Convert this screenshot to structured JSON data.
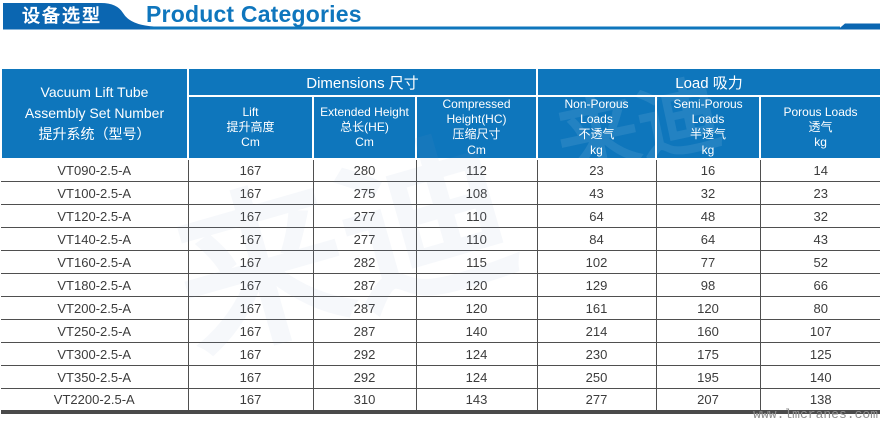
{
  "banner": {
    "tab_label": "设备选型",
    "title": "Product Categories"
  },
  "table": {
    "col1_header": "Vacuum Lift Tube\nAssembly Set Number\n提升系统（型号）",
    "groups": [
      {
        "label": "Dimensions 尺寸"
      },
      {
        "label": "Load 吸力"
      }
    ],
    "subheaders": [
      "Lift\n提升高度\nCm",
      "Extended Height\n总长(HE)\nCm",
      "Compressed\nHeight(HC)\n压缩尺寸\nCm",
      "Non-Porous\nLoads\n不透气\nkg",
      "Semi-Porous\nLoads\n半透气\nkg",
      "Porous Loads\n透气\nkg"
    ],
    "rows": [
      [
        "VT090-2.5-A",
        "167",
        "280",
        "112",
        "23",
        "16",
        "14"
      ],
      [
        "VT100-2.5-A",
        "167",
        "275",
        "108",
        "43",
        "32",
        "23"
      ],
      [
        "VT120-2.5-A",
        "167",
        "277",
        "110",
        "64",
        "48",
        "32"
      ],
      [
        "VT140-2.5-A",
        "167",
        "277",
        "110",
        "84",
        "64",
        "43"
      ],
      [
        "VT160-2.5-A",
        "167",
        "282",
        "115",
        "102",
        "77",
        "52"
      ],
      [
        "VT180-2.5-A",
        "167",
        "287",
        "120",
        "129",
        "98",
        "66"
      ],
      [
        "VT200-2.5-A",
        "167",
        "287",
        "120",
        "161",
        "120",
        "80"
      ],
      [
        "VT250-2.5-A",
        "167",
        "287",
        "140",
        "214",
        "160",
        "107"
      ],
      [
        "VT300-2.5-A",
        "167",
        "292",
        "124",
        "230",
        "175",
        "125"
      ],
      [
        "VT350-2.5-A",
        "167",
        "292",
        "124",
        "250",
        "195",
        "140"
      ],
      [
        "VT2200-2.5-A",
        "167",
        "310",
        "143",
        "277",
        "207",
        "138"
      ]
    ]
  },
  "watermark": {
    "site": "www.lmcranes.com",
    "background_text": "来迪"
  },
  "colors": {
    "header_blue": "#0e76bc",
    "tab_blue": "#0b66b1",
    "title_blue": "#0f76bd",
    "border_dark": "#4a4a4a",
    "body_text": "#3c3c3c"
  }
}
